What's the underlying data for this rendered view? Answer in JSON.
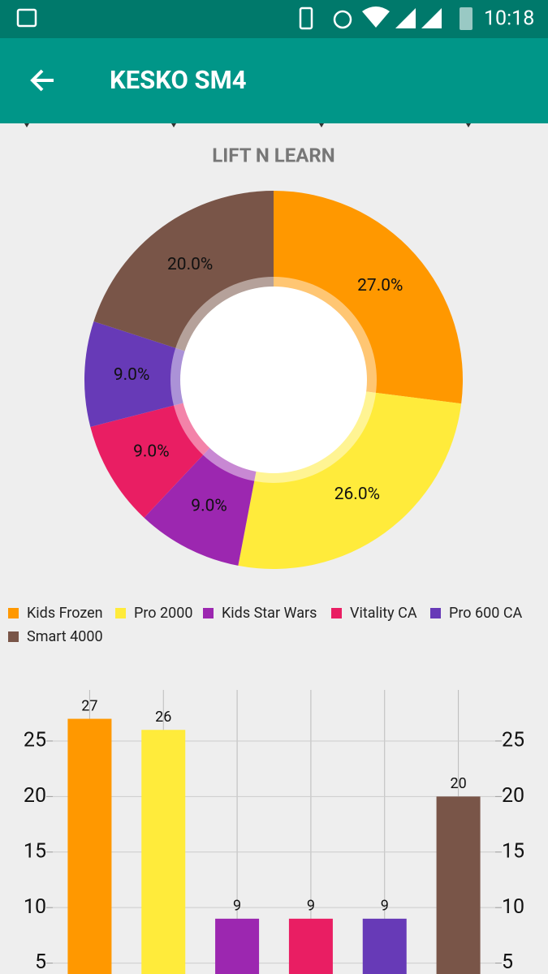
{
  "status_bar": {
    "time": "10:18"
  },
  "app_bar": {
    "title": "KESKO SM4"
  },
  "chart_data": [
    {
      "type": "pie",
      "title": "LIFT N LEARN",
      "categories": [
        "Kids Frozen",
        "Pro 2000",
        "Kids Star Wars",
        "Vitality CA",
        "Pro 600 CA",
        "Smart 4000"
      ],
      "values": [
        27,
        26,
        9,
        9,
        9,
        20
      ],
      "value_labels": [
        "27.0%",
        "26.0%",
        "9.0%",
        "9.0%",
        "9.0%",
        "20.0%"
      ],
      "colors": [
        "#ff9800",
        "#ffeb3b",
        "#9c27b0",
        "#e91e63",
        "#673ab7",
        "#795548"
      ]
    },
    {
      "type": "bar",
      "values": [
        27,
        26,
        9,
        9,
        9,
        20
      ],
      "colors": [
        "#ff9800",
        "#ffeb3b",
        "#9c27b0",
        "#e91e63",
        "#673ab7",
        "#795548"
      ],
      "ylim": [
        0,
        29.6
      ],
      "yticks": [
        5,
        10,
        15,
        20,
        25
      ],
      "grid": true
    }
  ]
}
